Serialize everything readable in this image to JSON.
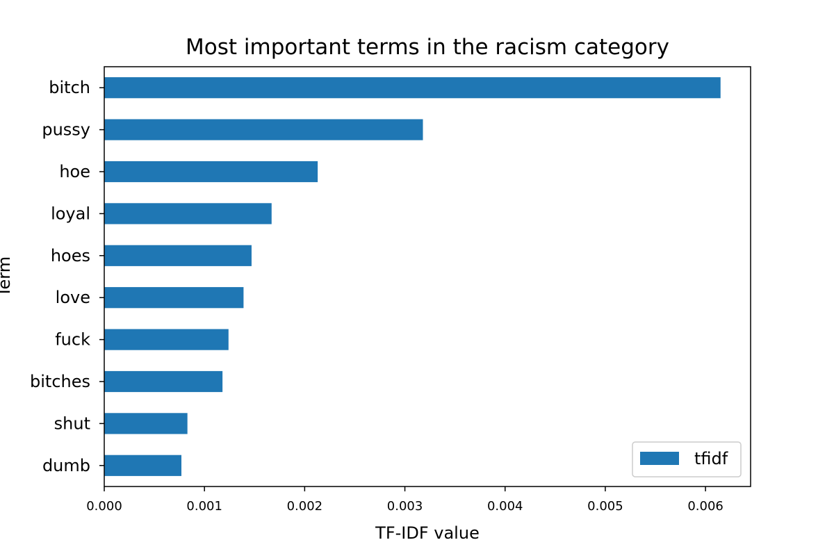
{
  "chart_data": {
    "type": "bar",
    "orientation": "horizontal",
    "title": "Most important terms in the racism category",
    "xlabel": "TF-IDF value",
    "ylabel": "Term",
    "categories": [
      "bitch",
      "pussy",
      "hoe",
      "loyal",
      "hoes",
      "love",
      "fuck",
      "bitches",
      "shut",
      "dumb"
    ],
    "series": [
      {
        "name": "tfidf",
        "values": [
          0.00615,
          0.00318,
          0.00213,
          0.00167,
          0.00147,
          0.00139,
          0.00124,
          0.00118,
          0.00083,
          0.00077
        ],
        "color": "#1f77b4"
      }
    ],
    "xlim": [
      0,
      0.00645
    ],
    "x_ticks": [
      "0.000",
      "0.001",
      "0.002",
      "0.003",
      "0.004",
      "0.005",
      "0.006"
    ],
    "legend_position": "bottom-right",
    "grid": false
  }
}
